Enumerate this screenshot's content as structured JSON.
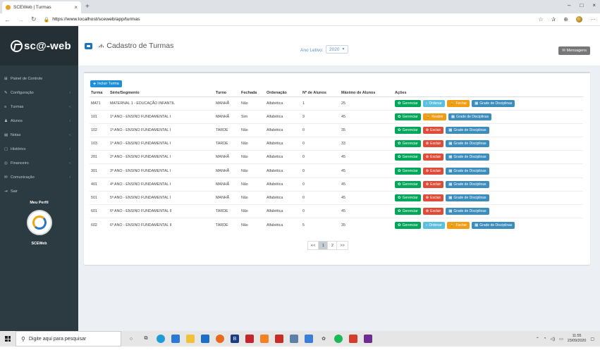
{
  "browser": {
    "tab_title": "SCEWeb | Turmas",
    "tab_close": "×",
    "new_tab": "+",
    "url": "https://www.localhost/sceweb/app/turmas",
    "win_controls": [
      "–",
      "□",
      "×"
    ]
  },
  "sidebar": {
    "brand": "sc@-web",
    "items": [
      {
        "icon": "⊞",
        "label": "Painel de Controle",
        "arrow": ""
      },
      {
        "icon": "✎",
        "label": "Configuração",
        "arrow": "‹"
      },
      {
        "icon": "≡",
        "label": "Turmas",
        "arrow": "‹"
      },
      {
        "icon": "♟",
        "label": "Alunos",
        "arrow": "‹"
      },
      {
        "icon": "▤",
        "label": "Notas",
        "arrow": "‹"
      },
      {
        "icon": "▢",
        "label": "Histórico",
        "arrow": "‹"
      },
      {
        "icon": "◎",
        "label": "Financeiro",
        "arrow": "‹"
      },
      {
        "icon": "✉",
        "label": "Comunicação",
        "arrow": "‹"
      },
      {
        "icon": "⇥",
        "label": "Sair",
        "arrow": ""
      }
    ],
    "profile_title": "Meu Perfil",
    "profile_name": "SCEWeb"
  },
  "header": {
    "title": "Cadastro de Turmas",
    "year_label": "Ano Letivo:",
    "year_value": "2020",
    "messages_label": "✉ Mensagens"
  },
  "main": {
    "add_button": "Incluir Turma",
    "columns": [
      "Turma",
      "Série/Segmento",
      "Turno",
      "Fechada",
      "Ordenação",
      "Nº de Alunos",
      "Máximo de Alunos",
      "Ações"
    ],
    "rows": [
      {
        "turma": "MAT1",
        "serie": "MATERNAL 1 - EDUCAÇÃO INFANTIL",
        "turno": "MANHÃ",
        "fechada": "Não",
        "ordenacao": "Alfabética",
        "alunos": "1",
        "max": "25",
        "actions": [
          {
            "label": "Gerenciar",
            "icon": "✿",
            "color": "green"
          },
          {
            "label": "Ordenar",
            "icon": "↕",
            "color": "cyan"
          },
          {
            "label": "Fechar",
            "icon": "🔒",
            "color": "orange"
          },
          {
            "label": "Grade de Disciplinas",
            "icon": "▦",
            "color": "blue"
          }
        ]
      },
      {
        "turma": "101",
        "serie": "1º ANO - ENSINO FUNDAMENTAL I",
        "turno": "MANHÃ",
        "fechada": "Sim",
        "ordenacao": "Alfabética",
        "alunos": "9",
        "max": "45",
        "actions": [
          {
            "label": "Gerenciar",
            "icon": "✿",
            "color": "green"
          },
          {
            "label": "Reabrir",
            "icon": "🔓",
            "color": "orange"
          },
          {
            "label": "Grade de Disciplinas",
            "icon": "▦",
            "color": "blue"
          }
        ]
      },
      {
        "turma": "102",
        "serie": "1º ANO - ENSINO FUNDAMENTAL I",
        "turno": "TARDE",
        "fechada": "Não",
        "ordenacao": "Alfabética",
        "alunos": "0",
        "max": "35",
        "actions": [
          {
            "label": "Gerenciar",
            "icon": "✿",
            "color": "green"
          },
          {
            "label": "Excluir",
            "icon": "⊗",
            "color": "red"
          },
          {
            "label": "Grade de Disciplinas",
            "icon": "▦",
            "color": "blue"
          }
        ]
      },
      {
        "turma": "103",
        "serie": "1º ANO - ENSINO FUNDAMENTAL I",
        "turno": "TARDE",
        "fechada": "Não",
        "ordenacao": "Alfabética",
        "alunos": "0",
        "max": "33",
        "actions": [
          {
            "label": "Gerenciar",
            "icon": "✿",
            "color": "green"
          },
          {
            "label": "Excluir",
            "icon": "⊗",
            "color": "red"
          },
          {
            "label": "Grade de Disciplinas",
            "icon": "▦",
            "color": "blue"
          }
        ]
      },
      {
        "turma": "201",
        "serie": "2º ANO - ENSINO FUNDAMENTAL I",
        "turno": "MANHÃ",
        "fechada": "Não",
        "ordenacao": "Alfabética",
        "alunos": "0",
        "max": "45",
        "actions": [
          {
            "label": "Gerenciar",
            "icon": "✿",
            "color": "green"
          },
          {
            "label": "Excluir",
            "icon": "⊗",
            "color": "red"
          },
          {
            "label": "Grade de Disciplinas",
            "icon": "▦",
            "color": "blue"
          }
        ]
      },
      {
        "turma": "301",
        "serie": "3º ANO - ENSINO FUNDAMENTAL I",
        "turno": "MANHÃ",
        "fechada": "Não",
        "ordenacao": "Alfabética",
        "alunos": "0",
        "max": "45",
        "actions": [
          {
            "label": "Gerenciar",
            "icon": "✿",
            "color": "green"
          },
          {
            "label": "Excluir",
            "icon": "⊗",
            "color": "red"
          },
          {
            "label": "Grade de Disciplinas",
            "icon": "▦",
            "color": "blue"
          }
        ]
      },
      {
        "turma": "401",
        "serie": "4º ANO - ENSINO FUNDAMENTAL I",
        "turno": "MANHÃ",
        "fechada": "Não",
        "ordenacao": "Alfabética",
        "alunos": "0",
        "max": "45",
        "actions": [
          {
            "label": "Gerenciar",
            "icon": "✿",
            "color": "green"
          },
          {
            "label": "Excluir",
            "icon": "⊗",
            "color": "red"
          },
          {
            "label": "Grade de Disciplinas",
            "icon": "▦",
            "color": "blue"
          }
        ]
      },
      {
        "turma": "501",
        "serie": "5º ANO - ENSINO FUNDAMENTAL I",
        "turno": "MANHÃ",
        "fechada": "Não",
        "ordenacao": "Alfabética",
        "alunos": "0",
        "max": "45",
        "actions": [
          {
            "label": "Gerenciar",
            "icon": "✿",
            "color": "green"
          },
          {
            "label": "Excluir",
            "icon": "⊗",
            "color": "red"
          },
          {
            "label": "Grade de Disciplinas",
            "icon": "▦",
            "color": "blue"
          }
        ]
      },
      {
        "turma": "601",
        "serie": "6º ANO - ENSINO FUNDAMENTAL II",
        "turno": "TARDE",
        "fechada": "Não",
        "ordenacao": "Alfabética",
        "alunos": "0",
        "max": "45",
        "actions": [
          {
            "label": "Gerenciar",
            "icon": "✿",
            "color": "green"
          },
          {
            "label": "Excluir",
            "icon": "⊗",
            "color": "red"
          },
          {
            "label": "Grade de Disciplinas",
            "icon": "▦",
            "color": "blue"
          }
        ]
      },
      {
        "turma": "602",
        "serie": "6º ANO - ENSINO FUNDAMENTAL II",
        "turno": "TARDE",
        "fechada": "Não",
        "ordenacao": "Alfabética",
        "alunos": "5",
        "max": "35",
        "actions": [
          {
            "label": "Gerenciar",
            "icon": "✿",
            "color": "green"
          },
          {
            "label": "Ordenar",
            "icon": "↕",
            "color": "cyan"
          },
          {
            "label": "Fechar",
            "icon": "🔒",
            "color": "orange"
          },
          {
            "label": "Grade de Disciplinas",
            "icon": "▦",
            "color": "blue"
          }
        ]
      }
    ],
    "pagination": [
      "<<",
      "1",
      "2",
      ">>"
    ],
    "active_page": "1"
  },
  "taskbar": {
    "search_placeholder": "Digite aqui para pesquisar",
    "time": "11:55",
    "date": "23/09/2020"
  }
}
